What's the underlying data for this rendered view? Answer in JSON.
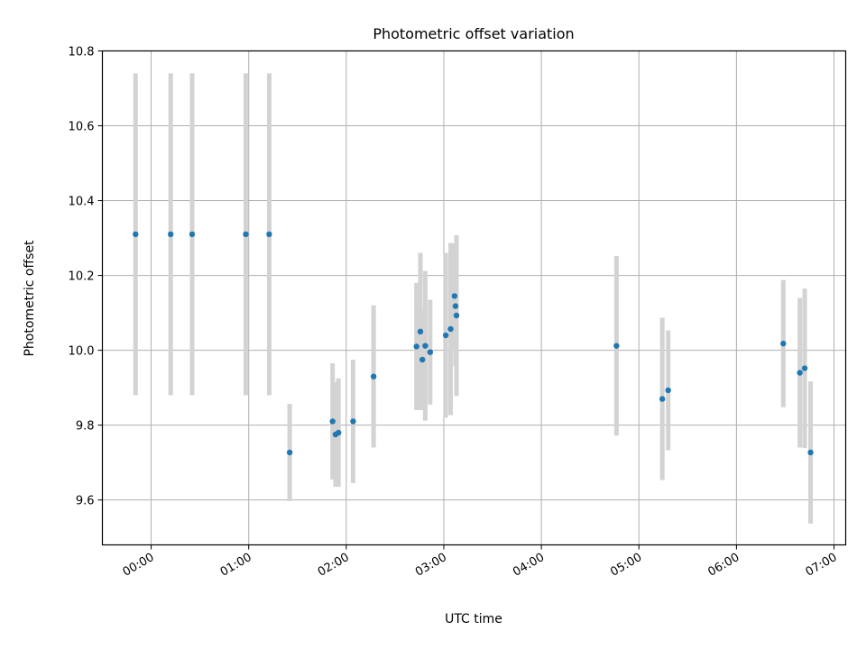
{
  "chart_data": {
    "type": "scatter",
    "title": "Photometric offset variation",
    "xlabel": "UTC time",
    "ylabel": "Photometric offset",
    "xlim_hours": [
      -0.5,
      7.12
    ],
    "ylim": [
      9.48,
      10.8
    ],
    "grid": true,
    "x_ticks": [
      {
        "value": 0,
        "label": "00:00"
      },
      {
        "value": 1,
        "label": "01:00"
      },
      {
        "value": 2,
        "label": "02:00"
      },
      {
        "value": 3,
        "label": "03:00"
      },
      {
        "value": 4,
        "label": "04:00"
      },
      {
        "value": 5,
        "label": "05:00"
      },
      {
        "value": 6,
        "label": "06:00"
      },
      {
        "value": 7,
        "label": "07:00"
      }
    ],
    "y_ticks": [
      {
        "value": 9.6,
        "label": "9.6"
      },
      {
        "value": 9.8,
        "label": "9.8"
      },
      {
        "value": 10.0,
        "label": "10.0"
      },
      {
        "value": 10.2,
        "label": "10.2"
      },
      {
        "value": 10.4,
        "label": "10.4"
      },
      {
        "value": 10.6,
        "label": "10.6"
      },
      {
        "value": 10.8,
        "label": "10.8"
      }
    ],
    "marker_color": "#1f77b4",
    "errorbar_color": "#d3d3d3",
    "points": [
      {
        "t": -0.16,
        "y": 10.31,
        "err": 0.43
      },
      {
        "t": 0.2,
        "y": 10.31,
        "err": 0.43
      },
      {
        "t": 0.42,
        "y": 10.31,
        "err": 0.43
      },
      {
        "t": 0.97,
        "y": 10.31,
        "err": 0.43
      },
      {
        "t": 1.21,
        "y": 10.31,
        "err": 0.43
      },
      {
        "t": 1.42,
        "y": 9.727,
        "err": 0.13
      },
      {
        "t": 1.86,
        "y": 9.81,
        "err": 0.155
      },
      {
        "t": 1.89,
        "y": 9.775,
        "err": 0.14
      },
      {
        "t": 1.92,
        "y": 9.78,
        "err": 0.145
      },
      {
        "t": 2.07,
        "y": 9.81,
        "err": 0.165
      },
      {
        "t": 2.28,
        "y": 9.93,
        "err": 0.19
      },
      {
        "t": 2.72,
        "y": 10.01,
        "err": 0.17
      },
      {
        "t": 2.76,
        "y": 10.05,
        "err": 0.21
      },
      {
        "t": 2.78,
        "y": 9.975,
        "err": 0.135
      },
      {
        "t": 2.81,
        "y": 10.012,
        "err": 0.2
      },
      {
        "t": 2.86,
        "y": 9.995,
        "err": 0.14
      },
      {
        "t": 3.02,
        "y": 10.04,
        "err": 0.22
      },
      {
        "t": 3.07,
        "y": 10.057,
        "err": 0.23
      },
      {
        "t": 3.11,
        "y": 10.145,
        "err": 0.14
      },
      {
        "t": 3.12,
        "y": 10.118,
        "err": 0.16
      },
      {
        "t": 3.13,
        "y": 10.093,
        "err": 0.215
      },
      {
        "t": 4.77,
        "y": 10.012,
        "err": 0.24
      },
      {
        "t": 5.24,
        "y": 9.87,
        "err": 0.217
      },
      {
        "t": 5.3,
        "y": 9.893,
        "err": 0.16
      },
      {
        "t": 6.48,
        "y": 10.018,
        "err": 0.17
      },
      {
        "t": 6.65,
        "y": 9.94,
        "err": 0.2
      },
      {
        "t": 6.7,
        "y": 9.952,
        "err": 0.213
      },
      {
        "t": 6.76,
        "y": 9.727,
        "err": 0.19
      }
    ]
  }
}
